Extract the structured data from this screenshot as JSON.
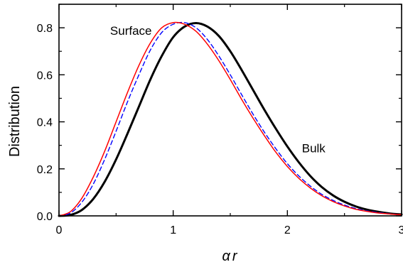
{
  "chart_data": {
    "type": "line",
    "title": "",
    "xlabel": "αr",
    "ylabel": "Distribution",
    "xlim": [
      0,
      3
    ],
    "ylim": [
      0,
      0.9
    ],
    "x_ticks": [
      0,
      1,
      2,
      3
    ],
    "x_tick_labels": [
      "0",
      "1",
      "2",
      "3"
    ],
    "y_ticks": [
      0.0,
      0.2,
      0.4,
      0.6,
      0.8
    ],
    "y_tick_labels": [
      "0.0",
      "0.2",
      "0.4",
      "0.6",
      "0.8"
    ],
    "grid": false,
    "legend": "none",
    "x": [
      0,
      0.1,
      0.2,
      0.3,
      0.4,
      0.5,
      0.6,
      0.7,
      0.8,
      0.9,
      1.0,
      1.1,
      1.2,
      1.3,
      1.4,
      1.5,
      1.6,
      1.7,
      1.8,
      1.9,
      2.0,
      2.1,
      2.2,
      2.3,
      2.4,
      2.5,
      2.6,
      2.7,
      2.8,
      2.9,
      3.0
    ],
    "series": [
      {
        "color": "#000000",
        "style": "solid-thick",
        "values": [
          0,
          0.004,
          0.025,
          0.072,
          0.145,
          0.24,
          0.35,
          0.465,
          0.58,
          0.68,
          0.76,
          0.805,
          0.82,
          0.805,
          0.765,
          0.7,
          0.62,
          0.535,
          0.45,
          0.37,
          0.295,
          0.228,
          0.17,
          0.123,
          0.087,
          0.06,
          0.04,
          0.026,
          0.017,
          0.01,
          0.006
        ]
      },
      {
        "color": "#0000ff",
        "style": "dashed",
        "values": [
          0,
          0.012,
          0.058,
          0.135,
          0.24,
          0.36,
          0.485,
          0.6,
          0.705,
          0.78,
          0.815,
          0.822,
          0.8,
          0.75,
          0.68,
          0.6,
          0.515,
          0.432,
          0.355,
          0.285,
          0.222,
          0.17,
          0.127,
          0.092,
          0.066,
          0.046,
          0.031,
          0.021,
          0.014,
          0.009,
          0.005
        ]
      },
      {
        "color": "#ff0000",
        "style": "solid-thin",
        "values": [
          0,
          0.018,
          0.075,
          0.165,
          0.275,
          0.4,
          0.525,
          0.64,
          0.735,
          0.8,
          0.822,
          0.815,
          0.785,
          0.73,
          0.66,
          0.58,
          0.495,
          0.415,
          0.34,
          0.27,
          0.21,
          0.16,
          0.119,
          0.086,
          0.061,
          0.042,
          0.028,
          0.019,
          0.012,
          0.008,
          0.005
        ]
      }
    ],
    "annotations": [
      {
        "text": "Surface",
        "x": 0.63,
        "y": 0.77
      },
      {
        "text": "Bulk",
        "x": 2.23,
        "y": 0.27
      }
    ]
  }
}
